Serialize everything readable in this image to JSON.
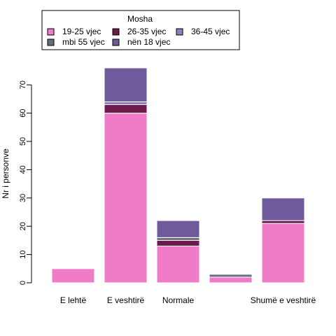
{
  "chart_data": {
    "type": "bar",
    "stacked": true,
    "categories": [
      "E lehtë",
      "E veshtirë",
      "Normale",
      "",
      "Shumë e veshtirë"
    ],
    "series": [
      {
        "name": "19-25 vjec",
        "color": "#F07CC7",
        "values": [
          5,
          60,
          13,
          2,
          21
        ]
      },
      {
        "name": "26-35 vjec",
        "color": "#6E1A4D",
        "values": [
          0,
          3,
          2,
          0,
          1
        ]
      },
      {
        "name": "36-45 vjec",
        "color": "#8F7FC0",
        "values": [
          0,
          1,
          0,
          0,
          0
        ]
      },
      {
        "name": "mbi 55 vjec",
        "color": "#6C6C80",
        "values": [
          0,
          0,
          1,
          1,
          0
        ]
      },
      {
        "name": "nën 18 vjec",
        "color": "#6F5A9C",
        "values": [
          0,
          12,
          6,
          0,
          8
        ]
      }
    ],
    "title": "",
    "xlabel": "",
    "ylabel": "Nr i personve",
    "ylim": [
      0,
      76
    ],
    "yticks": [
      0,
      10,
      20,
      30,
      40,
      50,
      60,
      70
    ],
    "grid": false,
    "legend": {
      "title": "Mosha",
      "position": "top"
    }
  }
}
